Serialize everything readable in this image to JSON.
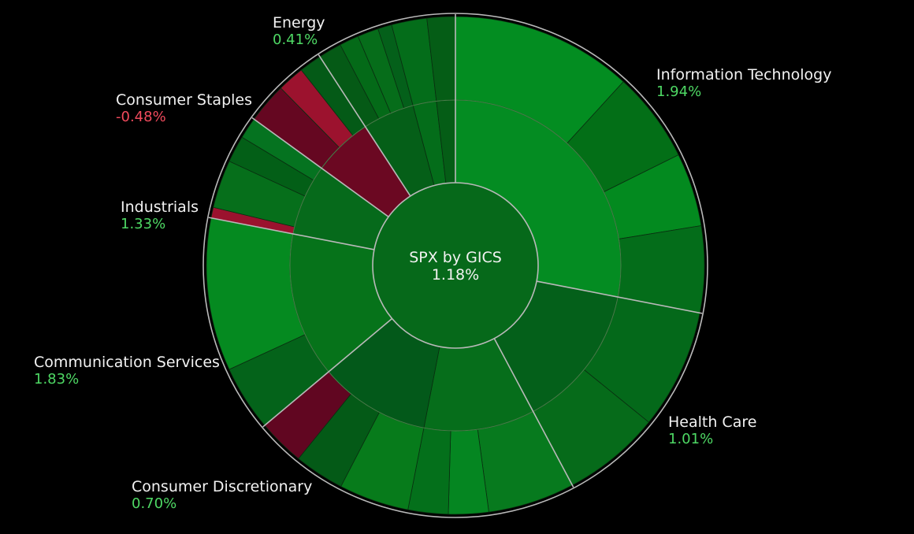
{
  "colors": {
    "background": "#000000",
    "positive_text": "#4ed864",
    "negative_text": "#f04a5c",
    "separator": "#b9b9b9"
  },
  "chart_data": {
    "type": "sunburst",
    "center": {
      "title": "SPX by GICS",
      "change": "1.18%"
    },
    "sectors": [
      {
        "name": "Information Technology",
        "change": "1.94%",
        "value": 1.94,
        "color": "#06731a",
        "industries": [
          {
            "color": "#048c22",
            "stocks": [
              {
                "color": "#038d21"
              },
              {
                "color": "#036f17"
              },
              {
                "color": "#038a1f"
              },
              {
                "color": "#046d1a"
              }
            ]
          }
        ]
      },
      {
        "name": "Health Care",
        "change": "1.01%",
        "value": 1.01,
        "color": "#055f14",
        "industries": [
          {
            "color": "#04601a",
            "stocks": [
              {
                "color": "#04691a"
              },
              {
                "color": "#066b1a"
              }
            ]
          }
        ]
      },
      {
        "name": "Consumer Discretionary",
        "change": "0.70%",
        "value": 0.7,
        "color": "#056914",
        "industries": [
          {
            "color": "#066e1b",
            "stocks": [
              {
                "color": "#077a1e"
              },
              {
                "color": "#058621"
              },
              {
                "color": "#04701b"
              }
            ]
          },
          {
            "color": "#03591a",
            "stocks": [
              {
                "color": "#077b1b"
              },
              {
                "color": "#045a17"
              },
              {
                "color": "#610621"
              }
            ]
          }
        ]
      },
      {
        "name": "Communication Services",
        "change": "1.83%",
        "value": 1.83,
        "color": "#04701b",
        "industries": [
          {
            "color": "#06731a",
            "stocks": [
              {
                "color": "#04631a"
              },
              {
                "color": "#058a20"
              }
            ]
          }
        ]
      },
      {
        "name": "Industrials",
        "change": "1.33%",
        "value": 1.33,
        "color": "#06691a",
        "industries": [
          {
            "color": "#066a1b",
            "stocks": [
              {
                "color": "#9b122e"
              },
              {
                "color": "#066f1b"
              },
              {
                "color": "#035f17"
              },
              {
                "color": "#057320"
              }
            ]
          }
        ]
      },
      {
        "name": "Consumer Staples",
        "change": "-0.48%",
        "value": -0.48,
        "color": "#6b0822",
        "industries": [
          {
            "color": "#6b0822",
            "stocks": [
              {
                "color": "#650721"
              },
              {
                "color": "#9c122e"
              },
              {
                "color": "#045a17"
              }
            ]
          }
        ]
      },
      {
        "name": "Energy",
        "change": "0.41%",
        "value": 0.41,
        "color": "#035a17",
        "industries": [
          {
            "color": "#055f18",
            "stocks": [
              {
                "color": "#055a16"
              },
              {
                "color": "#046a18"
              },
              {
                "color": "#066d1a"
              },
              {
                "color": "#04601a"
              }
            ]
          },
          {
            "color": "#046d1a",
            "stocks": []
          },
          {
            "color": "#055d16",
            "stocks": []
          }
        ]
      }
    ]
  }
}
